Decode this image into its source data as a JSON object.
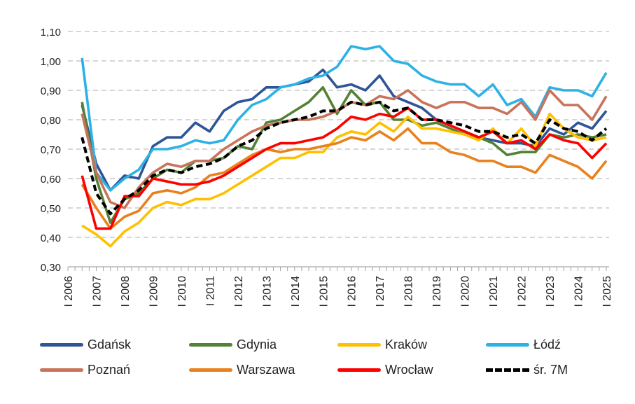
{
  "chart_data": {
    "type": "line",
    "title": "",
    "xlabel": "",
    "ylabel": "",
    "ylim": [
      0.3,
      1.1
    ],
    "yticks": [
      "0,30",
      "0,40",
      "0,50",
      "0,60",
      "0,70",
      "0,80",
      "0,90",
      "1,00",
      "1,10"
    ],
    "xlim": [
      2006,
      2025
    ],
    "xtick_labels": [
      "I 2006",
      "I 2007",
      "I 2008",
      "I 2009",
      "I 2010",
      "I 2011",
      "I 2012",
      "I 2013",
      "I 2014",
      "I 2015",
      "I 2016",
      "I 2017",
      "I 2018",
      "I 2019",
      "I 2020",
      "I 2021",
      "I 2022",
      "I 2023",
      "I 2024",
      "I 2025"
    ],
    "grid": "horizontal dashed",
    "legend_position": "bottom",
    "x": [
      2006.5,
      2007.0,
      2007.5,
      2008.0,
      2008.5,
      2009.0,
      2009.5,
      2010.0,
      2010.5,
      2011.0,
      2011.5,
      2012.0,
      2012.5,
      2013.0,
      2013.5,
      2014.0,
      2014.5,
      2015.0,
      2015.5,
      2016.0,
      2016.5,
      2017.0,
      2017.5,
      2018.0,
      2018.5,
      2019.0,
      2019.5,
      2020.0,
      2020.5,
      2021.0,
      2021.5,
      2022.0,
      2022.5,
      2023.0,
      2023.5,
      2024.0,
      2024.5,
      2025.0
    ],
    "series": [
      {
        "name": "Gdańsk",
        "color": "#2f5597",
        "dashed": false,
        "values": [
          0.85,
          0.65,
          0.56,
          0.61,
          0.6,
          0.71,
          0.74,
          0.74,
          0.79,
          0.76,
          0.83,
          0.86,
          0.87,
          0.91,
          0.91,
          0.92,
          0.93,
          0.97,
          0.91,
          0.92,
          0.9,
          0.95,
          0.88,
          0.86,
          0.84,
          0.8,
          0.78,
          0.76,
          0.74,
          0.73,
          0.72,
          0.72,
          0.71,
          0.77,
          0.75,
          0.79,
          0.77,
          0.83
        ]
      },
      {
        "name": "Gdynia",
        "color": "#548235",
        "dashed": false,
        "values": [
          0.86,
          0.6,
          0.45,
          0.53,
          0.55,
          0.6,
          0.63,
          0.62,
          0.66,
          0.66,
          0.67,
          0.71,
          0.7,
          0.79,
          0.8,
          0.83,
          0.86,
          0.91,
          0.82,
          0.9,
          0.85,
          0.86,
          0.8,
          0.8,
          0.78,
          0.79,
          0.77,
          0.75,
          0.74,
          0.72,
          0.68,
          0.69,
          0.69,
          0.75,
          0.74,
          0.75,
          0.74,
          0.75
        ]
      },
      {
        "name": "Kraków",
        "color": "#ffc000",
        "dashed": false,
        "values": [
          0.44,
          0.41,
          0.37,
          0.42,
          0.45,
          0.5,
          0.52,
          0.51,
          0.53,
          0.53,
          0.55,
          0.58,
          0.61,
          0.64,
          0.67,
          0.67,
          0.69,
          0.69,
          0.74,
          0.76,
          0.75,
          0.79,
          0.76,
          0.81,
          0.77,
          0.77,
          0.76,
          0.75,
          0.73,
          0.77,
          0.72,
          0.77,
          0.71,
          0.82,
          0.77,
          0.74,
          0.73,
          0.74
        ]
      },
      {
        "name": "Łódź",
        "color": "#2db2e5",
        "dashed": false,
        "values": [
          1.01,
          0.62,
          0.56,
          0.6,
          0.63,
          0.7,
          0.7,
          0.71,
          0.73,
          0.72,
          0.73,
          0.8,
          0.85,
          0.87,
          0.91,
          0.92,
          0.94,
          0.95,
          0.98,
          1.05,
          1.04,
          1.05,
          1.0,
          0.99,
          0.95,
          0.93,
          0.92,
          0.92,
          0.88,
          0.92,
          0.85,
          0.87,
          0.81,
          0.91,
          0.9,
          0.9,
          0.88,
          0.96
        ]
      },
      {
        "name": "Poznań",
        "color": "#c8735a",
        "dashed": false,
        "values": [
          0.82,
          0.62,
          0.52,
          0.5,
          0.57,
          0.62,
          0.65,
          0.64,
          0.66,
          0.66,
          0.7,
          0.73,
          0.76,
          0.78,
          0.79,
          0.8,
          0.8,
          0.81,
          0.83,
          0.86,
          0.85,
          0.88,
          0.87,
          0.9,
          0.86,
          0.84,
          0.86,
          0.86,
          0.84,
          0.84,
          0.82,
          0.86,
          0.8,
          0.9,
          0.85,
          0.85,
          0.8,
          0.88
        ]
      },
      {
        "name": "Warszawa",
        "color": "#e8821e",
        "dashed": false,
        "values": [
          0.58,
          0.5,
          0.43,
          0.47,
          0.49,
          0.55,
          0.56,
          0.55,
          0.57,
          0.61,
          0.62,
          0.65,
          0.68,
          0.7,
          0.69,
          0.7,
          0.7,
          0.71,
          0.72,
          0.74,
          0.73,
          0.76,
          0.73,
          0.77,
          0.72,
          0.72,
          0.69,
          0.68,
          0.66,
          0.66,
          0.64,
          0.64,
          0.62,
          0.68,
          0.66,
          0.64,
          0.6,
          0.66
        ]
      },
      {
        "name": "Wrocław",
        "color": "#ff0000",
        "dashed": false,
        "values": [
          0.61,
          0.43,
          0.43,
          0.54,
          0.54,
          0.6,
          0.59,
          0.58,
          0.58,
          0.59,
          0.61,
          0.64,
          0.67,
          0.7,
          0.72,
          0.72,
          0.73,
          0.74,
          0.77,
          0.81,
          0.8,
          0.82,
          0.81,
          0.84,
          0.8,
          0.8,
          0.78,
          0.76,
          0.74,
          0.76,
          0.72,
          0.73,
          0.7,
          0.75,
          0.73,
          0.72,
          0.67,
          0.72
        ]
      },
      {
        "name": "śr. 7M",
        "color": "#000000",
        "dashed": true,
        "values": [
          0.74,
          0.55,
          0.48,
          0.53,
          0.56,
          0.61,
          0.63,
          0.62,
          0.64,
          0.65,
          0.67,
          0.71,
          0.73,
          0.77,
          0.79,
          0.8,
          0.81,
          0.83,
          0.83,
          0.86,
          0.85,
          0.86,
          0.83,
          0.84,
          0.8,
          0.8,
          0.79,
          0.78,
          0.76,
          0.76,
          0.74,
          0.75,
          0.72,
          0.8,
          0.77,
          0.76,
          0.73,
          0.77
        ]
      }
    ]
  }
}
